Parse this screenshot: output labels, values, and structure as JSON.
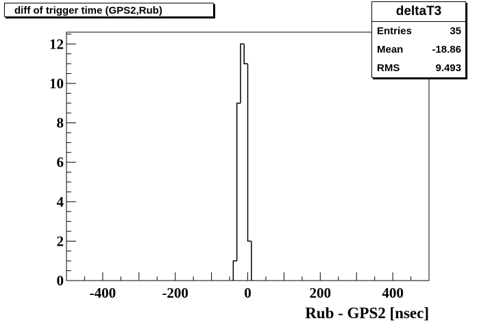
{
  "title": "diff of trigger time (GPS2,Rub)",
  "stats": {
    "name": "deltaT3",
    "rows": [
      {
        "label": "Entries",
        "value": "35"
      },
      {
        "label": "Mean",
        "value": "-18.86"
      },
      {
        "label": "RMS",
        "value": "9.493"
      }
    ]
  },
  "chart_data": {
    "type": "bar",
    "title": "diff of trigger time (GPS2,Rub)",
    "xlabel": "Rub - GPS2 [nsec]",
    "ylabel": "",
    "xlim": [
      -500,
      500
    ],
    "ylim": [
      0,
      12.6
    ],
    "xticks": [
      -400,
      -200,
      0,
      200,
      400
    ],
    "yticks": [
      0,
      2,
      4,
      6,
      8,
      10,
      12
    ],
    "xtick_labels": [
      "-400",
      "-200",
      "0",
      "200",
      "400"
    ],
    "ytick_labels": [
      "0",
      "2",
      "4",
      "6",
      "8",
      "10",
      "12"
    ],
    "bin_width": 10,
    "bins": [
      {
        "x_low": -40,
        "x_high": -30,
        "count": 1
      },
      {
        "x_low": -30,
        "x_high": -20,
        "count": 9
      },
      {
        "x_low": -20,
        "x_high": -10,
        "count": 12
      },
      {
        "x_low": -10,
        "x_high": 0,
        "count": 11
      },
      {
        "x_low": 0,
        "x_high": 10,
        "count": 2
      }
    ],
    "grid": false,
    "legend": "none"
  }
}
